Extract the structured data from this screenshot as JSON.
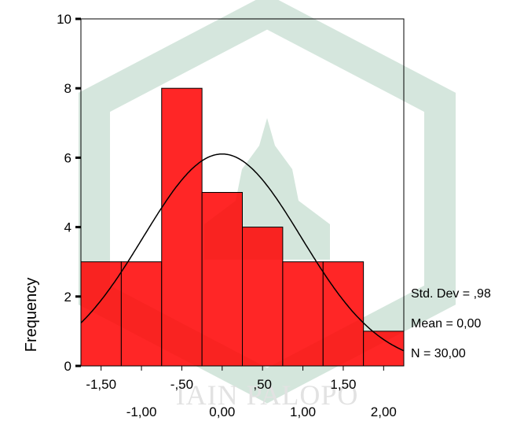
{
  "chart_data": {
    "type": "bar",
    "subtype": "histogram",
    "bins": [
      {
        "from": -1.75,
        "to": -1.25,
        "value": 3
      },
      {
        "from": -1.25,
        "to": -0.75,
        "value": 3
      },
      {
        "from": -0.75,
        "to": -0.25,
        "value": 8
      },
      {
        "from": -0.25,
        "to": 0.25,
        "value": 5
      },
      {
        "from": 0.25,
        "to": 0.75,
        "value": 4
      },
      {
        "from": 0.75,
        "to": 1.25,
        "value": 3
      },
      {
        "from": 1.25,
        "to": 1.75,
        "value": 3
      },
      {
        "from": 1.75,
        "to": 2.25,
        "value": 1
      }
    ],
    "xlim": [
      -1.75,
      2.25
    ],
    "ylim": [
      0,
      10
    ],
    "y_ticks": [
      0,
      2,
      4,
      6,
      8,
      10
    ],
    "y_tick_labels": [
      "0",
      "2",
      "4",
      "6",
      "8",
      "10"
    ],
    "x_ticks_top_row": [
      {
        "value": -1.5,
        "label": "-1,50"
      },
      {
        "value": -0.5,
        "label": "-,50"
      },
      {
        "value": 0.5,
        "label": ",50"
      },
      {
        "value": 1.5,
        "label": "1,50"
      }
    ],
    "x_ticks_bottom_row": [
      {
        "value": -1.0,
        "label": "-1,00"
      },
      {
        "value": 0.0,
        "label": "0,00"
      },
      {
        "value": 1.0,
        "label": "1,00"
      },
      {
        "value": 2.0,
        "label": "2,00"
      }
    ],
    "ylabel": "Frequency",
    "normal_curve": {
      "mean": 0.0,
      "std_dev": 0.98,
      "n": 30
    },
    "stats": {
      "std_dev": "Std. Dev = ,98",
      "mean": "Mean = 0,00",
      "n": "N = 30,00"
    },
    "bar_color": "#ff0000",
    "bar_edge_color": "#000000",
    "curve_color": "#000000",
    "grid": false
  },
  "watermark": {
    "text": "IAIN PALOPO",
    "color": "#cfe3d8"
  }
}
